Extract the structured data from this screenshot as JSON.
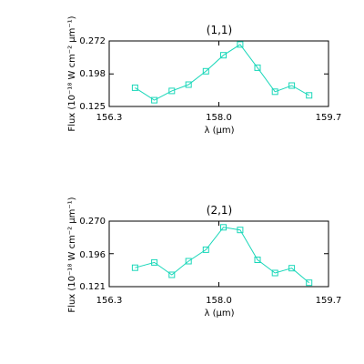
{
  "chart_data": [
    {
      "type": "line",
      "title": "(1,1)",
      "xlabel": "λ (μm)",
      "ylabel": "Flux (10⁻¹⁸ W cm⁻² μm⁻¹)",
      "xlim": [
        156.3,
        159.7
      ],
      "ylim": [
        0.125,
        0.272
      ],
      "x_ticks": [
        156.3,
        158.0,
        159.7
      ],
      "x_tick_labels": [
        "156.3",
        "158.0",
        "159.7"
      ],
      "y_ticks": [
        0.125,
        0.198,
        0.272
      ],
      "y_tick_labels": [
        "0.125",
        "0.198",
        "0.272"
      ],
      "x": [
        156.7,
        157.0,
        157.27,
        157.53,
        157.8,
        158.07,
        158.33,
        158.6,
        158.87,
        159.13,
        159.4
      ],
      "values": [
        0.167,
        0.139,
        0.16,
        0.174,
        0.204,
        0.24,
        0.264,
        0.212,
        0.158,
        0.172,
        0.15
      ],
      "color": "#19d7b9",
      "marker": "square"
    },
    {
      "type": "line",
      "title": "(2,1)",
      "xlabel": "λ (μm)",
      "ylabel": "Flux (10⁻¹⁸ W cm⁻² μm⁻¹)",
      "xlim": [
        156.3,
        159.7
      ],
      "ylim": [
        0.121,
        0.27
      ],
      "x_ticks": [
        156.3,
        158.0,
        159.7
      ],
      "x_tick_labels": [
        "156.3",
        "158.0",
        "159.7"
      ],
      "y_ticks": [
        0.121,
        0.196,
        0.27
      ],
      "y_tick_labels": [
        "0.121",
        "0.196",
        "0.270"
      ],
      "x": [
        156.7,
        157.0,
        157.27,
        157.53,
        157.8,
        158.07,
        158.33,
        158.6,
        158.87,
        159.13,
        159.4
      ],
      "values": [
        0.164,
        0.176,
        0.148,
        0.179,
        0.205,
        0.256,
        0.25,
        0.182,
        0.152,
        0.163,
        0.13
      ],
      "color": "#19d7b9",
      "marker": "square"
    }
  ]
}
